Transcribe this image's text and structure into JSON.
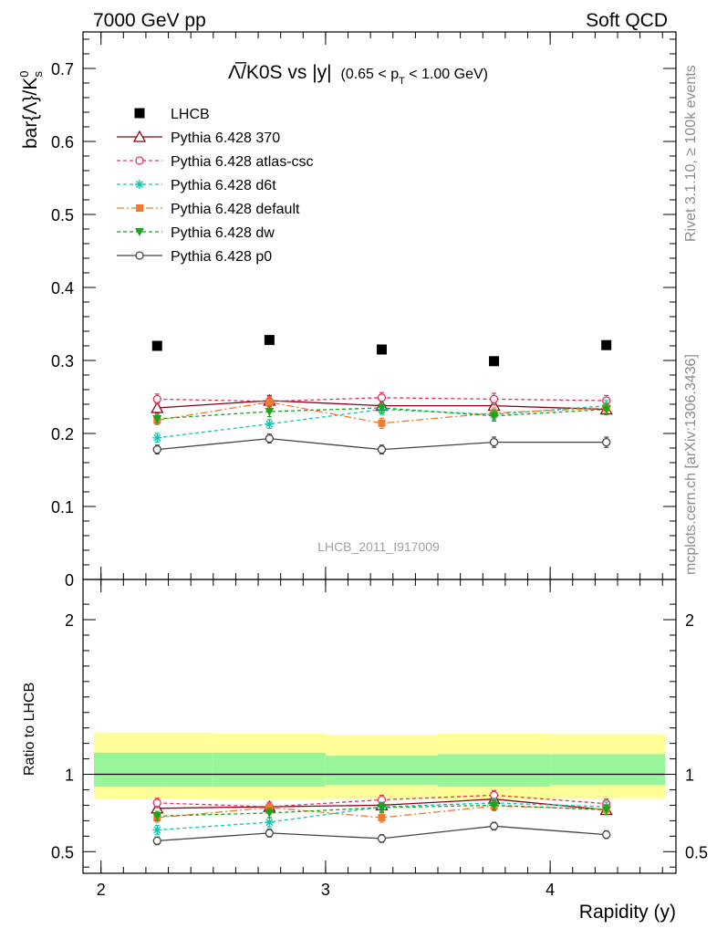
{
  "header": {
    "left": "7000 GeV pp",
    "right": "Soft QCD"
  },
  "side_text": {
    "top": "Rivet 3.1.10, ≥ 100k events",
    "bottom": "mcplots.cern.ch [arXiv:1306.3436]"
  },
  "chart_data": [
    {
      "type": "scatter",
      "panel": "main",
      "title_main": "Λ̅/K0S vs |y|",
      "title_sub": "(0.65 < p",
      "title_sub_sub": "T",
      "title_sub_end": " < 1.00 GeV)",
      "ylabel": "bar{Λ}/K",
      "ylabel_sup": "0",
      "ylabel_sub": "s",
      "watermark": "LHCB_2011_I917009",
      "xlim": [
        1.92,
        4.56
      ],
      "ylim": [
        0,
        0.75
      ],
      "y_ticks": [
        0,
        0.1,
        0.2,
        0.3,
        0.4,
        0.5,
        0.6,
        0.7
      ],
      "y_tick_labels": [
        "0",
        "0.1",
        "0.2",
        "0.3",
        "0.4",
        "0.5",
        "0.6",
        "0.7"
      ],
      "x": [
        2.25,
        2.75,
        3.25,
        3.75,
        4.25
      ],
      "data": {
        "name": "LHCB",
        "values": [
          0.32,
          0.328,
          0.315,
          0.299,
          0.321
        ],
        "color": "#000000",
        "marker": "square"
      },
      "series": [
        {
          "name": "Pythia 6.428 370",
          "values": [
            0.235,
            0.245,
            0.238,
            0.238,
            0.233
          ],
          "err": [
            0.007,
            0.007,
            0.007,
            0.007,
            0.007
          ],
          "color": "#8b0019",
          "dash": "none",
          "marker": "triangle-open"
        },
        {
          "name": "Pythia 6.428 atlas-csc",
          "values": [
            0.247,
            0.244,
            0.249,
            0.247,
            0.245
          ],
          "err": [
            0.007,
            0.007,
            0.007,
            0.008,
            0.007
          ],
          "color": "#e8315a",
          "dash": "4,3",
          "marker": "circle-open"
        },
        {
          "name": "Pythia 6.428 d6t",
          "values": [
            0.194,
            0.213,
            0.233,
            0.226,
            0.238
          ],
          "err": [
            0.006,
            0.006,
            0.007,
            0.007,
            0.007
          ],
          "color": "#10c6b0",
          "dash": "4,3",
          "marker": "star"
        },
        {
          "name": "Pythia 6.428 default",
          "values": [
            0.218,
            0.243,
            0.214,
            0.228,
            0.235
          ],
          "err": [
            0.006,
            0.007,
            0.007,
            0.007,
            0.007
          ],
          "color": "#f57a2b",
          "dash": "8,3,2,3",
          "marker": "square-filled"
        },
        {
          "name": "Pythia 6.428 dw",
          "values": [
            0.22,
            0.23,
            0.235,
            0.224,
            0.233
          ],
          "err": [
            0.006,
            0.007,
            0.007,
            0.007,
            0.007
          ],
          "color": "#1aa51a",
          "dash": "4,3",
          "marker": "triangle-down"
        },
        {
          "name": "Pythia 6.428 p0",
          "values": [
            0.178,
            0.193,
            0.178,
            0.188,
            0.188
          ],
          "err": [
            0.006,
            0.006,
            0.006,
            0.007,
            0.007
          ],
          "color": "#444444",
          "dash": "none",
          "marker": "circle-open"
        }
      ]
    },
    {
      "type": "scatter",
      "panel": "ratio",
      "xlabel": "Rapidity (y)",
      "ylabel": "Ratio to LHCB",
      "xlim": [
        1.92,
        4.56
      ],
      "ylim": [
        0.36,
        2.26
      ],
      "x_ticks": [
        2,
        3,
        4
      ],
      "x_tick_labels": [
        "2",
        "3",
        "4"
      ],
      "y_ticks": [
        0.5,
        1,
        2
      ],
      "y_tick_labels": [
        "0.5",
        "1",
        "2"
      ],
      "bins": [
        [
          1.92,
          2.5
        ],
        [
          2.5,
          3.0
        ],
        [
          3.0,
          3.5
        ],
        [
          3.5,
          4.0
        ],
        [
          4.0,
          4.5
        ]
      ],
      "band_yellow": [
        [
          0.84,
          1.27
        ],
        [
          0.835,
          1.265
        ],
        [
          0.845,
          1.255
        ],
        [
          0.835,
          1.265
        ],
        [
          0.845,
          1.26
        ]
      ],
      "band_green": [
        [
          0.92,
          1.14
        ],
        [
          0.92,
          1.14
        ],
        [
          0.93,
          1.12
        ],
        [
          0.92,
          1.13
        ],
        [
          0.93,
          1.13
        ]
      ],
      "x": [
        2.25,
        2.75,
        3.25,
        3.75,
        4.25
      ],
      "series": [
        {
          "name": "Pythia 6.428 370",
          "values": [
            0.78,
            0.79,
            0.8,
            0.84,
            0.77
          ],
          "err": [
            0.03,
            0.03,
            0.03,
            0.03,
            0.03
          ],
          "color": "#8b0019",
          "dash": "none",
          "marker": "triangle-open"
        },
        {
          "name": "Pythia 6.428 atlas-csc",
          "values": [
            0.815,
            0.79,
            0.835,
            0.865,
            0.81
          ],
          "err": [
            0.03,
            0.03,
            0.03,
            0.03,
            0.03
          ],
          "color": "#e8315a",
          "dash": "4,3",
          "marker": "circle-open"
        },
        {
          "name": "Pythia 6.428 d6t",
          "values": [
            0.64,
            0.69,
            0.79,
            0.815,
            0.79
          ],
          "err": [
            0.03,
            0.03,
            0.03,
            0.03,
            0.03
          ],
          "color": "#10c6b0",
          "dash": "4,3",
          "marker": "star"
        },
        {
          "name": "Pythia 6.428 default",
          "values": [
            0.72,
            0.785,
            0.72,
            0.795,
            0.775
          ],
          "err": [
            0.03,
            0.03,
            0.03,
            0.03,
            0.03
          ],
          "color": "#f57a2b",
          "dash": "8,3,2,3",
          "marker": "square-filled"
        },
        {
          "name": "Pythia 6.428 dw",
          "values": [
            0.73,
            0.75,
            0.785,
            0.8,
            0.77
          ],
          "err": [
            0.03,
            0.03,
            0.03,
            0.03,
            0.03
          ],
          "color": "#1aa51a",
          "dash": "4,3",
          "marker": "triangle-down"
        },
        {
          "name": "Pythia 6.428 p0",
          "values": [
            0.57,
            0.62,
            0.585,
            0.665,
            0.61
          ],
          "err": [
            0.025,
            0.025,
            0.025,
            0.025,
            0.025
          ],
          "color": "#444444",
          "dash": "none",
          "marker": "circle-open"
        }
      ]
    }
  ]
}
